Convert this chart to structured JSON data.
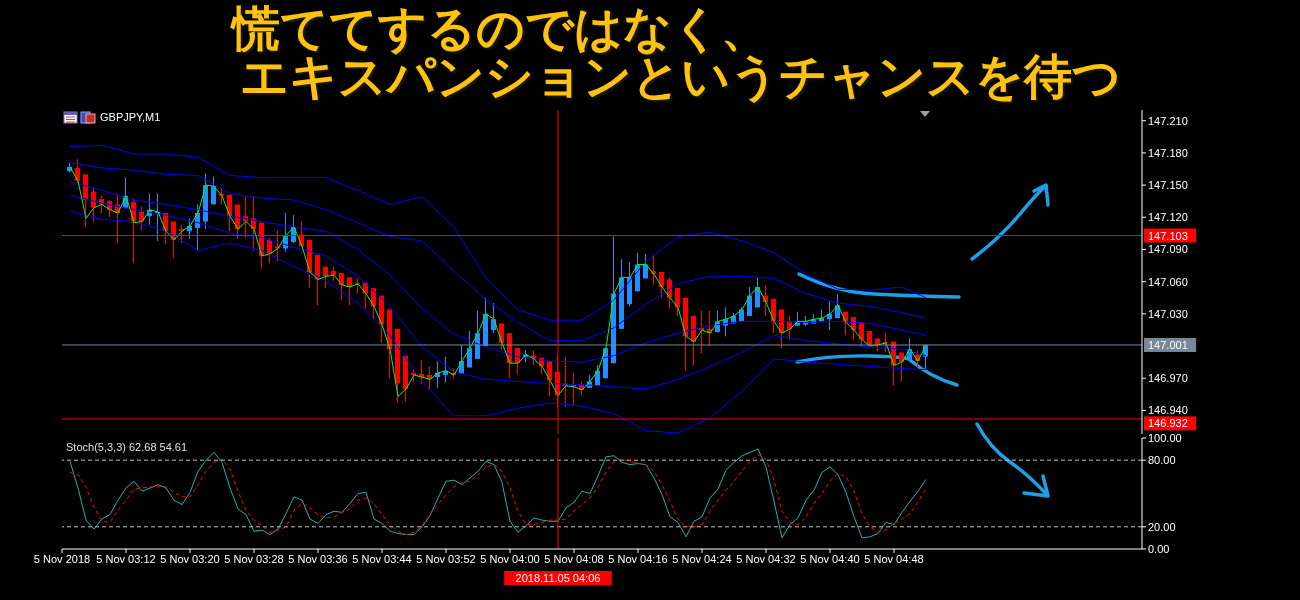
{
  "chart_data": [
    {
      "type": "candlestick",
      "title": "慌ててするのではなく、",
      "subtitle": "エキスパンションというチャンスを待つ",
      "annotations": [
        "GBPJPY,M1"
      ],
      "x": [
        "2018-11-05T03:05",
        "2018-11-05T03:06",
        "2018-11-05T03:07",
        "2018-11-05T03:08",
        "2018-11-05T03:09",
        "2018-11-05T03:10",
        "2018-11-05T03:11",
        "2018-11-05T03:12",
        "2018-11-05T03:13",
        "2018-11-05T03:14",
        "2018-11-05T03:15",
        "2018-11-05T03:16",
        "2018-11-05T03:17",
        "2018-11-05T03:18",
        "2018-11-05T03:19",
        "2018-11-05T03:20",
        "2018-11-05T03:21",
        "2018-11-05T03:22",
        "2018-11-05T03:23",
        "2018-11-05T03:24",
        "2018-11-05T03:25",
        "2018-11-05T03:26",
        "2018-11-05T03:27",
        "2018-11-05T03:28",
        "2018-11-05T03:29",
        "2018-11-05T03:30",
        "2018-11-05T03:31",
        "2018-11-05T03:32",
        "2018-11-05T03:33",
        "2018-11-05T03:34",
        "2018-11-05T03:35",
        "2018-11-05T03:36",
        "2018-11-05T03:37",
        "2018-11-05T03:38",
        "2018-11-05T03:39",
        "2018-11-05T03:40",
        "2018-11-05T03:41",
        "2018-11-05T03:42",
        "2018-11-05T03:43",
        "2018-11-05T03:44",
        "2018-11-05T03:45",
        "2018-11-05T03:46",
        "2018-11-05T03:47",
        "2018-11-05T03:48",
        "2018-11-05T03:49",
        "2018-11-05T03:50",
        "2018-11-05T03:51",
        "2018-11-05T03:52",
        "2018-11-05T03:53",
        "2018-11-05T03:54",
        "2018-11-05T03:55",
        "2018-11-05T03:56",
        "2018-11-05T03:57",
        "2018-11-05T03:58",
        "2018-11-05T03:59",
        "2018-11-05T04:00",
        "2018-11-05T04:01",
        "2018-11-05T04:02",
        "2018-11-05T04:03",
        "2018-11-05T04:04",
        "2018-11-05T04:05",
        "2018-11-05T04:06",
        "2018-11-05T04:07",
        "2018-11-05T04:08",
        "2018-11-05T04:09",
        "2018-11-05T04:10",
        "2018-11-05T04:11",
        "2018-11-05T04:12",
        "2018-11-05T04:13",
        "2018-11-05T04:14",
        "2018-11-05T04:15",
        "2018-11-05T04:16",
        "2018-11-05T04:17",
        "2018-11-05T04:18",
        "2018-11-05T04:19",
        "2018-11-05T04:20",
        "2018-11-05T04:21",
        "2018-11-05T04:22",
        "2018-11-05T04:23",
        "2018-11-05T04:24",
        "2018-11-05T04:25",
        "2018-11-05T04:26",
        "2018-11-05T04:27",
        "2018-11-05T04:28",
        "2018-11-05T04:29",
        "2018-11-05T04:30",
        "2018-11-05T04:31",
        "2018-11-05T04:32",
        "2018-11-05T04:33",
        "2018-11-05T04:34",
        "2018-11-05T04:35",
        "2018-11-05T04:36",
        "2018-11-05T04:37",
        "2018-11-05T04:38",
        "2018-11-05T04:39",
        "2018-11-05T04:40",
        "2018-11-05T04:41",
        "2018-11-05T04:42",
        "2018-11-05T04:43",
        "2018-11-05T04:44",
        "2018-11-05T04:45",
        "2018-11-05T04:46",
        "2018-11-05T04:47",
        "2018-11-05T04:48",
        "2018-11-05T04:49",
        "2018-11-05T04:50",
        "2018-11-05T04:51",
        "2018-11-05T04:52"
      ],
      "ohlc": [
        [
          147.163,
          147.171,
          147.162,
          147.167
        ],
        [
          147.166,
          147.174,
          147.152,
          147.154
        ],
        [
          147.16,
          147.16,
          147.111,
          147.136
        ],
        [
          147.144,
          147.148,
          147.116,
          147.129
        ],
        [
          147.137,
          147.14,
          147.124,
          147.132
        ],
        [
          147.135,
          147.136,
          147.12,
          147.127
        ],
        [
          147.132,
          147.142,
          147.096,
          147.124
        ],
        [
          147.129,
          147.157,
          147.128,
          147.14
        ],
        [
          147.134,
          147.138,
          147.077,
          147.115
        ],
        [
          147.125,
          147.13,
          147.108,
          147.116
        ],
        [
          147.121,
          147.142,
          147.113,
          147.127
        ],
        [
          147.123,
          147.142,
          147.098,
          147.125
        ],
        [
          147.124,
          147.124,
          147.095,
          147.107
        ],
        [
          147.116,
          147.116,
          147.082,
          147.099
        ],
        [
          147.109,
          147.113,
          147.096,
          147.107
        ],
        [
          147.107,
          147.119,
          147.1,
          147.112
        ],
        [
          147.11,
          147.132,
          147.089,
          147.124
        ],
        [
          147.116,
          147.161,
          147.109,
          147.15
        ],
        [
          147.132,
          147.158,
          147.132,
          147.149
        ],
        [
          147.142,
          147.147,
          147.132,
          147.14
        ],
        [
          147.141,
          147.141,
          147.107,
          147.121
        ],
        [
          147.132,
          147.132,
          147.1,
          147.109
        ],
        [
          147.121,
          147.139,
          147.101,
          147.116
        ],
        [
          147.119,
          147.139,
          147.089,
          147.109
        ],
        [
          147.115,
          147.115,
          147.072,
          147.084
        ],
        [
          147.099,
          147.101,
          147.077,
          147.086
        ],
        [
          147.093,
          147.108,
          147.079,
          147.091
        ],
        [
          147.091,
          147.124,
          147.088,
          147.103
        ],
        [
          147.097,
          147.122,
          147.096,
          147.111
        ],
        [
          147.104,
          147.116,
          147.092,
          147.093
        ],
        [
          147.099,
          147.099,
          147.054,
          147.069
        ],
        [
          147.085,
          147.085,
          147.038,
          147.062
        ],
        [
          147.074,
          147.074,
          147.054,
          147.065
        ],
        [
          147.07,
          147.074,
          147.061,
          147.066
        ],
        [
          147.068,
          147.068,
          147.043,
          147.057
        ],
        [
          147.064,
          147.064,
          147.038,
          147.055
        ],
        [
          147.059,
          147.063,
          147.049,
          147.058
        ],
        [
          147.059,
          147.059,
          147.035,
          147.049
        ],
        [
          147.054,
          147.054,
          147.025,
          147.037
        ],
        [
          147.047,
          147.047,
          147.003,
          147.02
        ],
        [
          147.034,
          147.034,
          146.97,
          146.997
        ],
        [
          147.016,
          147.016,
          146.947,
          146.965
        ],
        [
          146.991,
          146.991,
          146.948,
          146.96
        ],
        [
          146.975,
          146.979,
          146.966,
          146.973
        ],
        [
          146.974,
          146.987,
          146.965,
          146.971
        ],
        [
          146.973,
          146.981,
          146.959,
          146.969
        ],
        [
          146.971,
          146.986,
          146.961,
          146.975
        ],
        [
          146.973,
          146.99,
          146.966,
          146.977
        ],
        [
          146.975,
          146.979,
          146.97,
          146.973
        ],
        [
          146.974,
          147.001,
          146.974,
          146.986
        ],
        [
          146.98,
          147.014,
          146.98,
          146.998
        ],
        [
          146.988,
          147.033,
          146.988,
          147.012
        ],
        [
          147.0,
          147.045,
          147.0,
          147.03
        ],
        [
          147.015,
          147.04,
          147.012,
          147.025
        ],
        [
          147.021,
          147.021,
          146.997,
          147.003
        ],
        [
          147.012,
          147.012,
          146.97,
          146.984
        ],
        [
          146.998,
          146.998,
          146.974,
          146.984
        ],
        [
          146.99,
          146.996,
          146.985,
          146.992
        ],
        [
          146.991,
          146.996,
          146.982,
          146.988
        ],
        [
          146.989,
          146.989,
          146.974,
          146.981
        ],
        [
          146.986,
          146.986,
          146.953,
          146.968
        ],
        [
          146.976,
          146.991,
          146.943,
          146.954
        ],
        [
          146.965,
          146.99,
          146.943,
          146.963
        ],
        [
          146.964,
          146.975,
          146.945,
          146.962
        ],
        [
          146.964,
          146.967,
          146.954,
          146.959
        ],
        [
          146.961,
          146.973,
          146.961,
          146.967
        ],
        [
          146.963,
          146.982,
          146.963,
          146.977
        ],
        [
          146.97,
          146.998,
          146.97,
          146.998
        ],
        [
          146.984,
          147.102,
          146.984,
          147.049
        ],
        [
          147.016,
          147.081,
          147.016,
          147.064
        ],
        [
          147.039,
          147.078,
          147.037,
          147.064
        ],
        [
          147.051,
          147.087,
          147.051,
          147.076
        ],
        [
          147.063,
          147.086,
          147.063,
          147.076
        ],
        [
          147.07,
          147.085,
          147.057,
          147.067
        ],
        [
          147.069,
          147.069,
          147.045,
          147.055
        ],
        [
          147.062,
          147.064,
          147.035,
          147.045
        ],
        [
          147.054,
          147.054,
          147.028,
          147.036
        ],
        [
          147.045,
          147.045,
          146.977,
          147.009
        ],
        [
          147.028,
          147.028,
          146.982,
          147.004
        ],
        [
          147.017,
          147.033,
          146.993,
          147.015
        ],
        [
          147.016,
          147.033,
          147.0,
          147.012
        ],
        [
          147.013,
          147.033,
          147.013,
          147.023
        ],
        [
          147.019,
          147.036,
          147.009,
          147.025
        ],
        [
          147.021,
          147.031,
          147.021,
          147.028
        ],
        [
          147.023,
          147.036,
          147.023,
          147.034
        ],
        [
          147.028,
          147.055,
          147.028,
          147.047
        ],
        [
          147.036,
          147.064,
          147.036,
          147.055
        ],
        [
          147.047,
          147.057,
          147.028,
          147.041
        ],
        [
          147.044,
          147.044,
          147.012,
          147.023
        ],
        [
          147.034,
          147.034,
          146.998,
          147.012
        ],
        [
          147.023,
          147.028,
          147.006,
          147.016
        ],
        [
          147.019,
          147.032,
          147.019,
          147.023
        ],
        [
          147.02,
          147.028,
          147.019,
          147.023
        ],
        [
          147.021,
          147.03,
          147.021,
          147.025
        ],
        [
          147.023,
          147.034,
          147.023,
          147.026
        ],
        [
          147.025,
          147.042,
          147.015,
          147.03
        ],
        [
          147.026,
          147.048,
          147.026,
          147.038
        ],
        [
          147.032,
          147.032,
          147.01,
          147.022
        ],
        [
          147.027,
          147.027,
          147.006,
          147.015
        ],
        [
          147.022,
          147.022,
          147.0,
          147.006
        ],
        [
          147.014,
          147.014,
          147.0,
          147.0
        ],
        [
          147.007,
          147.007,
          146.995,
          147.001
        ],
        [
          147.004,
          147.012,
          146.994,
          147.003
        ],
        [
          147.004,
          147.004,
          146.963,
          146.982
        ],
        [
          146.994,
          146.994,
          146.967,
          146.985
        ],
        [
          146.987,
          147.007,
          146.987,
          146.997
        ],
        [
          146.992,
          146.996,
          146.979,
          146.986
        ],
        [
          146.99,
          147.001,
          146.977,
          147.001
        ]
      ],
      "colors": [
        "#1e90ff",
        "#ff0000",
        "#ff0000",
        "#ff0000",
        "#ff0000",
        "#ff0000",
        "#ff0000",
        "#1e90ff",
        "#ff0000",
        "#ff0000",
        "#1e90ff",
        "#1e90ff",
        "#ff0000",
        "#ff0000",
        "#ff0000",
        "#1e90ff",
        "#1e90ff",
        "#1e90ff",
        "#1e90ff",
        "#ff0000",
        "#ff0000",
        "#ff0000",
        "#ff0000",
        "#ff0000",
        "#ff0000",
        "#ff0000",
        "#ff0000",
        "#1e90ff",
        "#1e90ff",
        "#ff0000",
        "#ff0000",
        "#ff0000",
        "#ff0000",
        "#ff0000",
        "#ff0000",
        "#ff0000",
        "#ff0000",
        "#ff0000",
        "#ff0000",
        "#ff0000",
        "#ff0000",
        "#ff0000",
        "#ff0000",
        "#ff0000",
        "#ff0000",
        "#ff0000",
        "#1e90ff",
        "#1e90ff",
        "#ff0000",
        "#1e90ff",
        "#1e90ff",
        "#1e90ff",
        "#1e90ff",
        "#1e90ff",
        "#ff0000",
        "#ff0000",
        "#ff0000",
        "#1e90ff",
        "#ff0000",
        "#ff0000",
        "#ff0000",
        "#ff0000",
        "#ff0000",
        "#ff0000",
        "#ff0000",
        "#1e90ff",
        "#1e90ff",
        "#1e90ff",
        "#1e90ff",
        "#1e90ff",
        "#1e90ff",
        "#1e90ff",
        "#1e90ff",
        "#ff0000",
        "#ff0000",
        "#ff0000",
        "#ff0000",
        "#ff0000",
        "#ff0000",
        "#ff0000",
        "#ff0000",
        "#1e90ff",
        "#1e90ff",
        "#1e90ff",
        "#1e90ff",
        "#1e90ff",
        "#1e90ff",
        "#ff0000",
        "#ff0000",
        "#ff0000",
        "#ff0000",
        "#1e90ff",
        "#1e90ff",
        "#1e90ff",
        "#1e90ff",
        "#1e90ff",
        "#1e90ff",
        "#ff0000",
        "#ff0000",
        "#ff0000",
        "#ff0000",
        "#ff0000",
        "#ff0000",
        "#ff0000",
        "#ff0000",
        "#1e90ff",
        "#ff0000",
        "#1e90ff"
      ],
      "series": [
        {
          "type": "line",
          "color": "#0000ff",
          "x": [
            "2018-11-05T03:05",
            "2018-11-05T03:09",
            "2018-11-05T03:13",
            "2018-11-05T03:17",
            "2018-11-05T03:21",
            "2018-11-05T03:25",
            "2018-11-05T03:29",
            "2018-11-05T03:33",
            "2018-11-05T03:37",
            "2018-11-05T03:41",
            "2018-11-05T03:45",
            "2018-11-05T03:49",
            "2018-11-05T03:53",
            "2018-11-05T03:57",
            "2018-11-05T04:01",
            "2018-11-05T04:05",
            "2018-11-05T04:09",
            "2018-11-05T04:13",
            "2018-11-05T04:17",
            "2018-11-05T04:21",
            "2018-11-05T04:25",
            "2018-11-05T04:29",
            "2018-11-05T04:33",
            "2018-11-05T04:37",
            "2018-11-05T04:41",
            "2018-11-05T04:45",
            "2018-11-05T04:49",
            "2018-11-05T04:52"
          ],
          "values": [
            147.186,
            147.187,
            147.179,
            147.179,
            147.176,
            147.159,
            147.157,
            147.157,
            147.157,
            147.145,
            147.132,
            147.139,
            147.111,
            147.063,
            147.034,
            147.024,
            147.024,
            147.043,
            147.079,
            147.102,
            147.106,
            147.098,
            147.087,
            147.067,
            147.053,
            147.052,
            147.055,
            147.045
          ]
        },
        {
          "type": "line",
          "color": "#0000ff",
          "x": [
            "2018-11-05T03:05",
            "2018-11-05T03:09",
            "2018-11-05T03:13",
            "2018-11-05T03:17",
            "2018-11-05T03:21",
            "2018-11-05T03:25",
            "2018-11-05T03:29",
            "2018-11-05T03:33",
            "2018-11-05T03:37",
            "2018-11-05T03:41",
            "2018-11-05T03:45",
            "2018-11-05T03:49",
            "2018-11-05T03:53",
            "2018-11-05T03:57",
            "2018-11-05T04:01",
            "2018-11-05T04:05",
            "2018-11-05T04:09",
            "2018-11-05T04:13",
            "2018-11-05T04:17",
            "2018-11-05T04:21",
            "2018-11-05T04:25",
            "2018-11-05T04:29",
            "2018-11-05T04:33",
            "2018-11-05T04:37",
            "2018-11-05T04:41",
            "2018-11-05T04:45",
            "2018-11-05T04:49",
            "2018-11-05T04:52"
          ],
          "values": [
            147.171,
            147.166,
            147.164,
            147.16,
            147.159,
            147.142,
            147.138,
            147.136,
            147.127,
            147.115,
            147.102,
            147.098,
            147.07,
            147.043,
            147.022,
            147.005,
            147.005,
            147.017,
            147.039,
            147.058,
            147.065,
            147.065,
            147.063,
            147.049,
            147.04,
            147.037,
            147.031,
            147.026
          ]
        },
        {
          "type": "line",
          "color": "#0000ff",
          "x": [
            "2018-11-05T03:05",
            "2018-11-05T03:09",
            "2018-11-05T03:13",
            "2018-11-05T03:17",
            "2018-11-05T03:21",
            "2018-11-05T03:25",
            "2018-11-05T03:29",
            "2018-11-05T03:33",
            "2018-11-05T03:37",
            "2018-11-05T03:41",
            "2018-11-05T03:45",
            "2018-11-05T03:49",
            "2018-11-05T03:53",
            "2018-11-05T03:57",
            "2018-11-05T04:01",
            "2018-11-05T04:05",
            "2018-11-05T04:09",
            "2018-11-05T04:13",
            "2018-11-05T04:17",
            "2018-11-05T04:21",
            "2018-11-05T04:25",
            "2018-11-05T04:29",
            "2018-11-05T04:33",
            "2018-11-05T04:37",
            "2018-11-05T04:41",
            "2018-11-05T04:45",
            "2018-11-05T04:49",
            "2018-11-05T04:52"
          ],
          "values": [
            147.153,
            147.145,
            147.136,
            147.132,
            147.127,
            147.121,
            147.116,
            147.111,
            147.107,
            147.09,
            147.066,
            147.035,
            147.011,
            146.999,
            146.99,
            146.986,
            146.985,
            146.991,
            147.003,
            147.012,
            147.019,
            147.023,
            147.023,
            147.022,
            147.023,
            147.021,
            147.015,
            147.01
          ]
        },
        {
          "type": "line",
          "color": "#0000ff",
          "x": [
            "2018-11-05T03:05",
            "2018-11-05T03:09",
            "2018-11-05T03:13",
            "2018-11-05T03:17",
            "2018-11-05T03:21",
            "2018-11-05T03:25",
            "2018-11-05T03:29",
            "2018-11-05T03:33",
            "2018-11-05T03:37",
            "2018-11-05T03:41",
            "2018-11-05T03:45",
            "2018-11-05T03:49",
            "2018-11-05T03:53",
            "2018-11-05T03:57",
            "2018-11-05T04:01",
            "2018-11-05T04:05",
            "2018-11-05T04:09",
            "2018-11-05T04:13",
            "2018-11-05T04:17",
            "2018-11-05T04:21",
            "2018-11-05T04:25",
            "2018-11-05T04:29",
            "2018-11-05T04:33",
            "2018-11-05T04:37",
            "2018-11-05T04:41",
            "2018-11-05T04:45",
            "2018-11-05T04:49",
            "2018-11-05T04:52"
          ],
          "values": [
            147.141,
            147.133,
            147.127,
            147.122,
            147.115,
            147.105,
            147.101,
            147.092,
            147.084,
            147.065,
            147.037,
            146.999,
            146.976,
            146.969,
            146.967,
            146.965,
            146.964,
            146.962,
            146.96,
            146.969,
            146.981,
            146.994,
            147.01,
            147.005,
            147.002,
            146.999,
            146.997,
            146.991
          ]
        },
        {
          "type": "line",
          "color": "#0000ff",
          "x": [
            "2018-11-05T03:05",
            "2018-11-05T03:09",
            "2018-11-05T03:13",
            "2018-11-05T03:17",
            "2018-11-05T03:21",
            "2018-11-05T03:25",
            "2018-11-05T03:29",
            "2018-11-05T03:33",
            "2018-11-05T03:37",
            "2018-11-05T03:41",
            "2018-11-05T03:45",
            "2018-11-05T03:49",
            "2018-11-05T03:53",
            "2018-11-05T03:57",
            "2018-11-05T04:01",
            "2018-11-05T04:05",
            "2018-11-05T04:09",
            "2018-11-05T04:13",
            "2018-11-05T04:17",
            "2018-11-05T04:21",
            "2018-11-05T04:25",
            "2018-11-05T04:29",
            "2018-11-05T04:33",
            "2018-11-05T04:37",
            "2018-11-05T04:41",
            "2018-11-05T04:45",
            "2018-11-05T04:49",
            "2018-11-05T04:52"
          ],
          "values": [
            147.126,
            147.118,
            147.116,
            147.107,
            147.089,
            147.096,
            147.089,
            147.074,
            147.061,
            147.04,
            147.01,
            146.967,
            146.935,
            146.935,
            146.942,
            146.947,
            146.944,
            146.937,
            146.921,
            146.919,
            146.933,
            146.958,
            146.988,
            146.985,
            146.983,
            146.981,
            146.979,
            146.978
          ]
        },
        {
          "type": "line",
          "color": "#00ff00",
          "values": [
            147.167,
            147.154,
            147.119,
            147.129,
            147.132,
            147.127,
            147.124,
            147.14,
            147.115,
            147.116,
            147.127,
            147.125,
            147.107,
            147.099,
            147.107,
            147.112,
            147.124,
            147.15,
            147.149,
            147.14,
            147.121,
            147.109,
            147.116,
            147.109,
            147.084,
            147.086,
            147.091,
            147.103,
            147.111,
            147.093,
            147.069,
            147.062,
            147.065,
            147.066,
            147.057,
            147.055,
            147.058,
            147.049,
            147.037,
            147.02,
            146.997,
            146.953,
            146.96,
            146.973,
            146.971,
            146.969,
            146.975,
            146.977,
            146.973,
            146.986,
            146.998,
            147.012,
            147.03,
            147.025,
            147.003,
            146.984,
            146.984,
            146.992,
            146.988,
            146.981,
            146.968,
            146.954,
            146.963,
            146.962,
            146.959,
            146.967,
            146.977,
            146.998,
            147.049,
            147.064,
            147.064,
            147.076,
            147.076,
            147.067,
            147.055,
            147.045,
            147.036,
            147.009,
            147.004,
            147.015,
            147.012,
            147.023,
            147.025,
            147.028,
            147.034,
            147.047,
            147.055,
            147.041,
            147.023,
            147.012,
            147.016,
            147.023,
            147.023,
            147.025,
            147.026,
            147.03,
            147.038,
            147.022,
            147.015,
            147.006,
            147.0,
            147.001,
            147.003,
            146.982,
            146.985,
            146.997,
            146.986,
            147.001
          ]
        }
      ],
      "xlim": [
        "2018-11-05T03:04",
        "2018-11-05T05:19"
      ],
      "ylim": [
        146.918,
        147.22
      ],
      "yticks": [
        {
          "value": 146.94,
          "label": "146.940"
        },
        {
          "value": 146.97,
          "label": "146.970"
        },
        {
          "value": 147.03,
          "label": "147.030"
        },
        {
          "value": 147.06,
          "label": "147.060"
        },
        {
          "value": 147.09,
          "label": "147.090"
        },
        {
          "value": 147.12,
          "label": "147.120"
        },
        {
          "value": 147.15,
          "label": "147.150"
        },
        {
          "value": 147.18,
          "label": "147.180"
        },
        {
          "value": 147.21,
          "label": "147.210"
        }
      ],
      "ref_lines": [
        {
          "axis": "y",
          "value": 147.103,
          "label": "147.103",
          "color": "#ff0000"
        },
        {
          "axis": "y",
          "value": 146.932,
          "label": "146.932",
          "color": "#ff0000"
        },
        {
          "axis": "y",
          "value": 147.001,
          "label": "147.001",
          "color": "#778899"
        },
        {
          "axis": "x",
          "value": "2018-11-05T04:06",
          "color": "#ff0000"
        }
      ],
      "tick_labels": "y"
    },
    {
      "type": "line",
      "title": "Stoch(5,3,3) 62.68 54.61",
      "x": [
        "2018-11-05T03:05",
        "2018-11-05T03:06",
        "2018-11-05T03:07",
        "2018-11-05T03:08",
        "2018-11-05T03:09",
        "2018-11-05T03:10",
        "2018-11-05T03:11",
        "2018-11-05T03:12",
        "2018-11-05T03:13",
        "2018-11-05T03:14",
        "2018-11-05T03:15",
        "2018-11-05T03:16",
        "2018-11-05T03:17",
        "2018-11-05T03:18",
        "2018-11-05T03:19",
        "2018-11-05T03:20",
        "2018-11-05T03:21",
        "2018-11-05T03:22",
        "2018-11-05T03:23",
        "2018-11-05T03:24",
        "2018-11-05T03:25",
        "2018-11-05T03:26",
        "2018-11-05T03:27",
        "2018-11-05T03:28",
        "2018-11-05T03:29",
        "2018-11-05T03:30",
        "2018-11-05T03:31",
        "2018-11-05T03:32",
        "2018-11-05T03:33",
        "2018-11-05T03:34",
        "2018-11-05T03:35",
        "2018-11-05T03:36",
        "2018-11-05T03:37",
        "2018-11-05T03:38",
        "2018-11-05T03:39",
        "2018-11-05T03:40",
        "2018-11-05T03:41",
        "2018-11-05T03:42",
        "2018-11-05T03:43",
        "2018-11-05T03:44",
        "2018-11-05T03:45",
        "2018-11-05T03:46",
        "2018-11-05T03:47",
        "2018-11-05T03:48",
        "2018-11-05T03:49",
        "2018-11-05T03:50",
        "2018-11-05T03:51",
        "2018-11-05T03:52",
        "2018-11-05T03:53",
        "2018-11-05T03:54",
        "2018-11-05T03:55",
        "2018-11-05T03:56",
        "2018-11-05T03:57",
        "2018-11-05T03:58",
        "2018-11-05T03:59",
        "2018-11-05T04:00",
        "2018-11-05T04:01",
        "2018-11-05T04:02",
        "2018-11-05T04:03",
        "2018-11-05T04:04",
        "2018-11-05T04:05",
        "2018-11-05T04:06",
        "2018-11-05T04:07",
        "2018-11-05T04:08",
        "2018-11-05T04:09",
        "2018-11-05T04:10",
        "2018-11-05T04:11",
        "2018-11-05T04:12",
        "2018-11-05T04:13",
        "2018-11-05T04:14",
        "2018-11-05T04:15",
        "2018-11-05T04:16",
        "2018-11-05T04:17",
        "2018-11-05T04:18",
        "2018-11-05T04:19",
        "2018-11-05T04:20",
        "2018-11-05T04:21",
        "2018-11-05T04:22",
        "2018-11-05T04:23",
        "2018-11-05T04:24",
        "2018-11-05T04:25",
        "2018-11-05T04:26",
        "2018-11-05T04:27",
        "2018-11-05T04:28",
        "2018-11-05T04:29",
        "2018-11-05T04:30",
        "2018-11-05T04:31",
        "2018-11-05T04:32",
        "2018-11-05T04:33",
        "2018-11-05T04:34",
        "2018-11-05T04:35",
        "2018-11-05T04:36",
        "2018-11-05T04:37",
        "2018-11-05T04:38",
        "2018-11-05T04:39",
        "2018-11-05T04:40",
        "2018-11-05T04:41",
        "2018-11-05T04:42",
        "2018-11-05T04:43",
        "2018-11-05T04:44",
        "2018-11-05T04:45",
        "2018-11-05T04:46",
        "2018-11-05T04:47",
        "2018-11-05T04:48",
        "2018-11-05T04:49",
        "2018-11-05T04:50",
        "2018-11-05T04:51",
        "2018-11-05T04:52"
      ],
      "series": [
        {
          "color": "#20b2aa",
          "values": [
            79,
            55,
            26,
            18,
            27,
            31,
            44,
            55,
            61,
            52,
            55,
            58,
            55,
            44,
            40,
            51,
            70,
            80,
            87,
            78,
            55,
            36,
            31,
            16,
            17,
            13,
            18,
            32,
            47,
            44,
            27,
            23,
            31,
            34,
            33,
            41,
            50,
            51,
            27,
            23,
            16,
            14,
            13,
            13,
            20,
            30,
            46,
            61,
            62,
            58,
            64,
            70,
            79,
            76,
            60,
            25,
            15,
            21,
            28,
            26,
            25,
            25,
            37,
            42,
            52,
            50,
            66,
            83,
            84,
            78,
            76,
            77,
            76,
            64,
            49,
            29,
            24,
            11,
            25,
            29,
            46,
            54,
            71,
            78,
            84,
            87,
            90,
            74,
            43,
            10,
            22,
            28,
            44,
            53,
            69,
            74,
            67,
            51,
            29,
            10,
            11,
            14,
            24,
            22,
            33,
            43,
            52,
            62.68
          ]
        },
        {
          "color": "#ff0000",
          "line_style": "dashed",
          "values": [
            69,
            67,
            56,
            38,
            25,
            24,
            35,
            44,
            54,
            55,
            56,
            56,
            56,
            51,
            47,
            47,
            58,
            70,
            78,
            81,
            72,
            52,
            35,
            26,
            21,
            15,
            17,
            20,
            35,
            41,
            37,
            31,
            28,
            29,
            33,
            36,
            44,
            46,
            41,
            31,
            22,
            16,
            13,
            15,
            21,
            31,
            40,
            49,
            56,
            60,
            61,
            67,
            74,
            76,
            70,
            55,
            34,
            22,
            22,
            24,
            26,
            26,
            27,
            34,
            40,
            46,
            56,
            69,
            79,
            81,
            79,
            77,
            76,
            70,
            58,
            43,
            27,
            20,
            20,
            22,
            34,
            44,
            53,
            61,
            70,
            79,
            85,
            81,
            62,
            34,
            24,
            22,
            29,
            41,
            50,
            61,
            68,
            65,
            52,
            32,
            20,
            15,
            17,
            23,
            27,
            32,
            42,
            54.61
          ]
        }
      ],
      "xlim": [
        "2018-11-05T03:04",
        "2018-11-05T05:19"
      ],
      "xticks": [
        {
          "value": "2018-11-05T03:04",
          "label": "5 Nov 2018"
        },
        {
          "value": "2018-11-05T03:12",
          "label": "5 Nov 03:12"
        },
        {
          "value": "2018-11-05T03:20",
          "label": "5 Nov 03:20"
        },
        {
          "value": "2018-11-05T03:28",
          "label": "5 Nov 03:28"
        },
        {
          "value": "2018-11-05T03:36",
          "label": "5 Nov 03:36"
        },
        {
          "value": "2018-11-05T03:44",
          "label": "5 Nov 03:44"
        },
        {
          "value": "2018-11-05T03:52",
          "label": "5 Nov 03:52"
        },
        {
          "value": "2018-11-05T04:00",
          "label": "5 Nov 04:00"
        },
        {
          "value": "2018-11-05T04:08",
          "label": "5 Nov 04:08"
        },
        {
          "value": "2018-11-05T04:16",
          "label": "5 Nov 04:16"
        },
        {
          "value": "2018-11-05T04:24",
          "label": "5 Nov 04:24"
        },
        {
          "value": "2018-11-05T04:32",
          "label": "5 Nov 04:32"
        },
        {
          "value": "2018-11-05T04:40",
          "label": "5 Nov 04:40"
        },
        {
          "value": "2018-11-05T04:48",
          "label": "5 Nov 04:48"
        }
      ],
      "ylim": [
        0,
        100
      ],
      "yticks": [
        {
          "value": 0,
          "label": "0.00"
        },
        {
          "value": 20,
          "label": "20.00"
        },
        {
          "value": 80,
          "label": "80.00"
        },
        {
          "value": 100,
          "label": "100.00"
        }
      ],
      "ref_lines": [
        {
          "axis": "y",
          "value": 80,
          "color": "#c0c0c0",
          "line_style": "dashed"
        },
        {
          "axis": "y",
          "value": 20,
          "color": "#c0c0c0",
          "line_style": "dashed"
        },
        {
          "axis": "x",
          "value": "2018-11-05T04:06",
          "label": "2018.11.05 04:06",
          "color": "#ff0000"
        }
      ]
    }
  ]
}
